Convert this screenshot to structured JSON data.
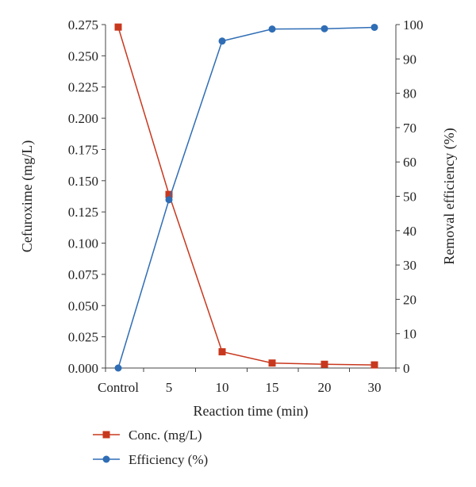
{
  "chart_data": {
    "type": "line",
    "categories": [
      "Control",
      "5",
      "10",
      "15",
      "20",
      "30"
    ],
    "xlabel": "Reaction time (min)",
    "ylabel_left": "Cefuroxime (mg/L)",
    "ylabel_right": "Removal efficiency (%)",
    "y_left": {
      "lim": [
        0,
        0.275
      ],
      "ticks": [
        "0.000",
        "0.025",
        "0.050",
        "0.075",
        "0.100",
        "0.125",
        "0.150",
        "0.175",
        "0.200",
        "0.225",
        "0.250",
        "0.275"
      ]
    },
    "y_right": {
      "lim": [
        0,
        100
      ],
      "ticks": [
        "0",
        "10",
        "20",
        "30",
        "40",
        "50",
        "60",
        "70",
        "80",
        "90",
        "100"
      ]
    },
    "grid": false,
    "legend_position": "bottom-left",
    "series": [
      {
        "name": "Conc. (mg/L)",
        "axis": "left",
        "marker": "square",
        "color": "#c8381e",
        "values": [
          0.273,
          0.139,
          0.013,
          0.004,
          0.003,
          0.0025
        ]
      },
      {
        "name": "Efficiency (%)",
        "axis": "right",
        "marker": "circle",
        "color": "#2f6db5",
        "values": [
          0,
          49,
          95.2,
          98.7,
          98.8,
          99.2
        ]
      }
    ]
  }
}
